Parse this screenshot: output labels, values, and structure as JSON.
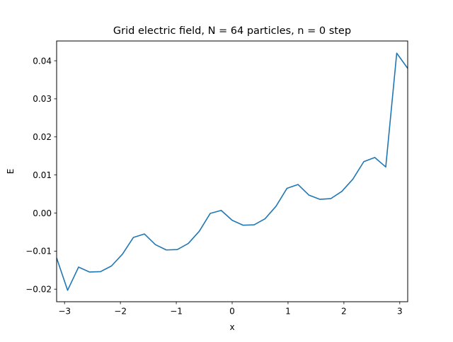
{
  "chart_data": {
    "type": "line",
    "title": "Grid electric field, N = 64 particles, n = 0 step",
    "xlabel": "x",
    "ylabel": "E",
    "xlim": [
      -3.1416,
      3.1416
    ],
    "ylim": [
      -0.0233,
      0.0452
    ],
    "xticks": [
      {
        "value": -3,
        "label": "−3"
      },
      {
        "value": -2,
        "label": "−2"
      },
      {
        "value": -1,
        "label": "−1"
      },
      {
        "value": 0,
        "label": "0"
      },
      {
        "value": 1,
        "label": "1"
      },
      {
        "value": 2,
        "label": "2"
      },
      {
        "value": 3,
        "label": "3"
      }
    ],
    "yticks": [
      {
        "value": -0.02,
        "label": "−0.02"
      },
      {
        "value": -0.01,
        "label": "−0.01"
      },
      {
        "value": 0.0,
        "label": "0.00"
      },
      {
        "value": 0.01,
        "label": "0.01"
      },
      {
        "value": 0.02,
        "label": "0.02"
      },
      {
        "value": 0.03,
        "label": "0.03"
      },
      {
        "value": 0.04,
        "label": "0.04"
      }
    ],
    "grid": false,
    "series": [
      {
        "color": "#1f77b4",
        "x": [
          -3.1416,
          -2.9452,
          -2.7489,
          -2.5525,
          -2.3562,
          -2.1598,
          -1.9635,
          -1.7671,
          -1.5708,
          -1.3744,
          -1.1781,
          -0.9817,
          -0.7854,
          -0.589,
          -0.3927,
          -0.1963,
          0.0,
          0.1963,
          0.3927,
          0.589,
          0.7854,
          0.9817,
          1.1781,
          1.3744,
          1.5708,
          1.7671,
          1.9635,
          2.1598,
          2.3562,
          2.5525,
          2.7489,
          2.9452,
          3.1416
        ],
        "y": [
          -0.0118,
          -0.0203,
          -0.0142,
          -0.0155,
          -0.0154,
          -0.0139,
          -0.0108,
          -0.0064,
          -0.0055,
          -0.0083,
          -0.0097,
          -0.0096,
          -0.008,
          -0.0048,
          -0.0001,
          0.0007,
          -0.0019,
          -0.0032,
          -0.0031,
          -0.0015,
          0.0018,
          0.0065,
          0.0075,
          0.0047,
          0.0036,
          0.0038,
          0.0057,
          0.0089,
          0.0135,
          0.0146,
          0.0121,
          0.042,
          0.038
        ]
      }
    ]
  }
}
